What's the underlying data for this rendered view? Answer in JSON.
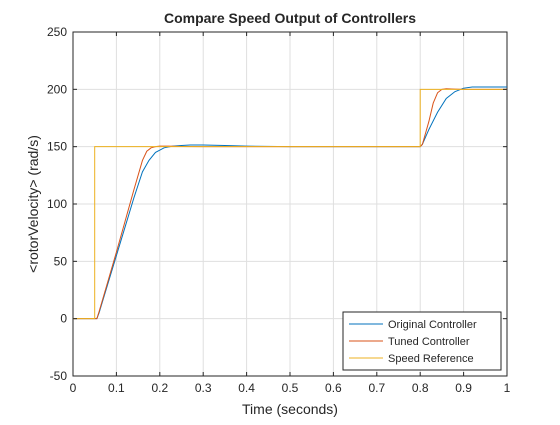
{
  "chart_data": {
    "type": "line",
    "title": "Compare Speed Output of Controllers",
    "xlabel": "Time (seconds)",
    "ylabel": "<rotorVelocity> (rad/s)",
    "xlim": [
      0,
      1
    ],
    "ylim": [
      -50,
      250
    ],
    "xticks": [
      0,
      0.1,
      0.2,
      0.3,
      0.4,
      0.5,
      0.6,
      0.7,
      0.8,
      0.9,
      1
    ],
    "xtick_labels": [
      "0",
      "0.1",
      "0.2",
      "0.3",
      "0.4",
      "0.5",
      "0.6",
      "0.7",
      "0.8",
      "0.9",
      "1"
    ],
    "yticks": [
      -50,
      0,
      50,
      100,
      150,
      200,
      250
    ],
    "ytick_labels": [
      "-50",
      "0",
      "50",
      "100",
      "150",
      "200",
      "250"
    ],
    "grid": true,
    "legend_position": "bottom-right",
    "series": [
      {
        "name": "Original Controller",
        "color": "#0072BD",
        "x": [
          0,
          0.05,
          0.055,
          0.06,
          0.08,
          0.1,
          0.12,
          0.14,
          0.16,
          0.175,
          0.19,
          0.21,
          0.23,
          0.25,
          0.27,
          0.3,
          0.35,
          0.4,
          0.5,
          0.6,
          0.7,
          0.8,
          0.805,
          0.82,
          0.84,
          0.86,
          0.88,
          0.9,
          0.92,
          0.95,
          1.0
        ],
        "y": [
          0,
          0,
          0,
          5,
          30,
          55,
          80,
          105,
          128,
          138,
          145,
          149,
          150.5,
          151,
          151.5,
          151.5,
          151,
          150.5,
          150,
          150,
          150,
          150,
          152,
          165,
          180,
          192,
          198,
          201,
          202,
          202,
          202
        ]
      },
      {
        "name": "Tuned Controller",
        "color": "#D95319",
        "x": [
          0,
          0.05,
          0.055,
          0.06,
          0.08,
          0.1,
          0.12,
          0.14,
          0.16,
          0.17,
          0.18,
          0.19,
          0.2,
          0.22,
          0.25,
          0.3,
          0.4,
          0.5,
          0.6,
          0.7,
          0.8,
          0.805,
          0.82,
          0.83,
          0.84,
          0.85,
          0.86,
          0.88,
          0.9,
          1.0
        ],
        "y": [
          0,
          0,
          0,
          6,
          32,
          58,
          85,
          112,
          138,
          146,
          149,
          150,
          150.5,
          150.5,
          150.2,
          150,
          150,
          150,
          150,
          150,
          150,
          152,
          172,
          188,
          197,
          200,
          200.5,
          200.2,
          200,
          200
        ]
      },
      {
        "name": "Speed Reference",
        "color": "#EDB120",
        "x": [
          0,
          0.05,
          0.05,
          0.8,
          0.8,
          1.0
        ],
        "y": [
          0,
          0,
          150,
          150,
          200,
          200
        ]
      }
    ]
  }
}
